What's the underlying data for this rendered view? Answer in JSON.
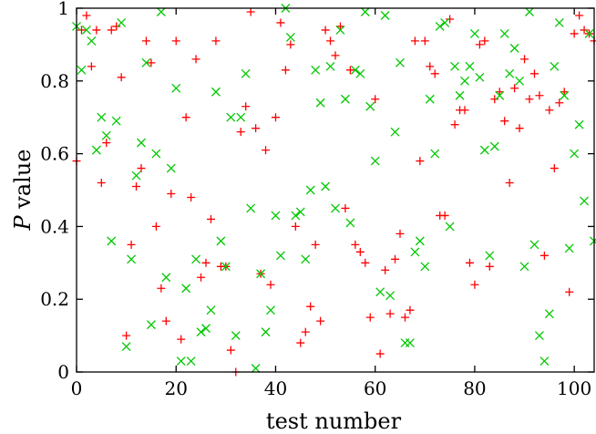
{
  "chart_data": {
    "type": "scatter",
    "title": "",
    "xlabel": "test number",
    "ylabel_symbol": "P",
    "ylabel_text": "value",
    "xlim": [
      0,
      104
    ],
    "ylim": [
      0,
      1
    ],
    "x_ticks": [
      0,
      20,
      40,
      60,
      80,
      100
    ],
    "y_ticks": [
      0,
      0.2,
      0.4,
      0.6,
      0.8,
      1
    ],
    "y_tick_labels": [
      "0",
      "0.2",
      "0.4",
      "0.6",
      "0.8",
      "1"
    ],
    "grid": false,
    "legend": "none",
    "series": [
      {
        "marker": "plus",
        "color": "#ff0000",
        "points": [
          [
            0,
            0.58
          ],
          [
            1,
            0.94
          ],
          [
            2,
            0.98
          ],
          [
            3,
            0.84
          ],
          [
            4,
            0.94
          ],
          [
            5,
            0.52
          ],
          [
            6,
            0.63
          ],
          [
            7,
            0.94
          ],
          [
            8,
            0.95
          ],
          [
            9,
            0.81
          ],
          [
            10,
            0.1
          ],
          [
            11,
            0.35
          ],
          [
            12,
            0.51
          ],
          [
            13,
            0.56
          ],
          [
            14,
            0.91
          ],
          [
            15,
            0.85
          ],
          [
            16,
            0.4
          ],
          [
            17,
            0.23
          ],
          [
            18,
            0.14
          ],
          [
            19,
            0.49
          ],
          [
            20,
            0.91
          ],
          [
            21,
            0.09
          ],
          [
            22,
            0.7
          ],
          [
            23,
            0.48
          ],
          [
            24,
            0.86
          ],
          [
            25,
            0.26
          ],
          [
            26,
            0.3
          ],
          [
            27,
            0.42
          ],
          [
            28,
            0.91
          ],
          [
            29,
            0.29
          ],
          [
            30,
            0.29
          ],
          [
            31,
            0.06
          ],
          [
            32,
            0.0
          ],
          [
            33,
            0.66
          ],
          [
            34,
            0.73
          ],
          [
            35,
            0.99
          ],
          [
            36,
            0.67
          ],
          [
            37,
            0.27
          ],
          [
            38,
            0.61
          ],
          [
            39,
            0.24
          ],
          [
            40,
            0.7
          ],
          [
            41,
            0.96
          ],
          [
            42,
            0.83
          ],
          [
            43,
            0.9
          ],
          [
            44,
            0.4
          ],
          [
            45,
            0.08
          ],
          [
            46,
            0.11
          ],
          [
            47,
            0.18
          ],
          [
            48,
            0.35
          ],
          [
            49,
            0.14
          ],
          [
            50,
            0.94
          ],
          [
            51,
            0.91
          ],
          [
            52,
            0.87
          ],
          [
            53,
            0.95
          ],
          [
            54,
            0.45
          ],
          [
            55,
            0.83
          ],
          [
            56,
            0.35
          ],
          [
            57,
            0.33
          ],
          [
            58,
            0.3
          ],
          [
            59,
            0.15
          ],
          [
            60,
            0.75
          ],
          [
            61,
            0.05
          ],
          [
            62,
            0.28
          ],
          [
            63,
            0.16
          ],
          [
            64,
            0.31
          ],
          [
            65,
            0.38
          ],
          [
            66,
            0.15
          ],
          [
            67,
            0.17
          ],
          [
            68,
            0.91
          ],
          [
            69,
            0.58
          ],
          [
            70,
            0.91
          ],
          [
            71,
            0.84
          ],
          [
            72,
            0.82
          ],
          [
            73,
            0.43
          ],
          [
            74,
            0.43
          ],
          [
            75,
            0.97
          ],
          [
            76,
            0.68
          ],
          [
            77,
            0.72
          ],
          [
            78,
            0.72
          ],
          [
            79,
            0.3
          ],
          [
            80,
            0.24
          ],
          [
            81,
            0.9
          ],
          [
            82,
            0.91
          ],
          [
            83,
            0.29
          ],
          [
            84,
            0.75
          ],
          [
            85,
            0.77
          ],
          [
            86,
            0.69
          ],
          [
            87,
            0.52
          ],
          [
            88,
            0.78
          ],
          [
            89,
            0.67
          ],
          [
            90,
            0.86
          ],
          [
            91,
            0.75
          ],
          [
            92,
            0.82
          ],
          [
            93,
            0.76
          ],
          [
            94,
            0.32
          ],
          [
            95,
            0.72
          ],
          [
            96,
            0.56
          ],
          [
            97,
            0.74
          ],
          [
            98,
            0.77
          ],
          [
            99,
            0.22
          ],
          [
            100,
            0.93
          ],
          [
            101,
            0.98
          ],
          [
            102,
            0.94
          ],
          [
            103,
            0.93
          ],
          [
            104,
            0.91
          ]
        ]
      },
      {
        "marker": "cross",
        "color": "#00c800",
        "points": [
          [
            0,
            0.95
          ],
          [
            1,
            0.83
          ],
          [
            2,
            0.94
          ],
          [
            3,
            0.91
          ],
          [
            4,
            0.61
          ],
          [
            5,
            0.7
          ],
          [
            6,
            0.65
          ],
          [
            7,
            0.36
          ],
          [
            8,
            0.69
          ],
          [
            9,
            0.96
          ],
          [
            10,
            0.07
          ],
          [
            11,
            0.31
          ],
          [
            12,
            0.54
          ],
          [
            13,
            0.63
          ],
          [
            14,
            0.85
          ],
          [
            15,
            0.13
          ],
          [
            16,
            0.6
          ],
          [
            17,
            0.99
          ],
          [
            18,
            0.26
          ],
          [
            19,
            0.56
          ],
          [
            20,
            0.78
          ],
          [
            21,
            0.03
          ],
          [
            22,
            0.23
          ],
          [
            23,
            0.03
          ],
          [
            24,
            0.31
          ],
          [
            25,
            0.11
          ],
          [
            26,
            0.12
          ],
          [
            27,
            0.17
          ],
          [
            28,
            0.77
          ],
          [
            29,
            0.36
          ],
          [
            30,
            0.29
          ],
          [
            31,
            0.7
          ],
          [
            32,
            0.1
          ],
          [
            33,
            0.7
          ],
          [
            34,
            0.82
          ],
          [
            35,
            0.45
          ],
          [
            36,
            0.01
          ],
          [
            37,
            0.27
          ],
          [
            38,
            0.11
          ],
          [
            39,
            0.17
          ],
          [
            40,
            0.43
          ],
          [
            41,
            0.32
          ],
          [
            42,
            1.0
          ],
          [
            43,
            0.92
          ],
          [
            44,
            0.43
          ],
          [
            45,
            0.44
          ],
          [
            46,
            0.31
          ],
          [
            47,
            0.5
          ],
          [
            48,
            0.83
          ],
          [
            49,
            0.74
          ],
          [
            50,
            0.51
          ],
          [
            51,
            0.84
          ],
          [
            52,
            0.45
          ],
          [
            53,
            0.94
          ],
          [
            54,
            0.75
          ],
          [
            55,
            0.41
          ],
          [
            56,
            0.83
          ],
          [
            57,
            0.82
          ],
          [
            58,
            0.99
          ],
          [
            59,
            0.73
          ],
          [
            60,
            0.58
          ],
          [
            61,
            0.22
          ],
          [
            62,
            0.98
          ],
          [
            63,
            0.21
          ],
          [
            64,
            0.66
          ],
          [
            65,
            0.85
          ],
          [
            66,
            0.08
          ],
          [
            67,
            0.08
          ],
          [
            68,
            0.33
          ],
          [
            69,
            0.36
          ],
          [
            70,
            0.29
          ],
          [
            71,
            0.75
          ],
          [
            72,
            0.6
          ],
          [
            73,
            0.95
          ],
          [
            74,
            0.96
          ],
          [
            75,
            0.4
          ],
          [
            76,
            0.84
          ],
          [
            77,
            0.76
          ],
          [
            78,
            0.8
          ],
          [
            79,
            0.84
          ],
          [
            80,
            0.93
          ],
          [
            81,
            0.81
          ],
          [
            82,
            0.61
          ],
          [
            83,
            0.32
          ],
          [
            84,
            0.62
          ],
          [
            85,
            0.76
          ],
          [
            86,
            0.93
          ],
          [
            87,
            0.82
          ],
          [
            88,
            0.89
          ],
          [
            89,
            0.8
          ],
          [
            90,
            0.29
          ],
          [
            91,
            0.99
          ],
          [
            92,
            0.35
          ],
          [
            93,
            0.1
          ],
          [
            94,
            0.03
          ],
          [
            95,
            0.16
          ],
          [
            96,
            0.84
          ],
          [
            97,
            0.96
          ],
          [
            98,
            0.76
          ],
          [
            99,
            0.34
          ],
          [
            100,
            0.6
          ],
          [
            101,
            0.68
          ],
          [
            102,
            0.47
          ],
          [
            103,
            0.93
          ],
          [
            104,
            0.36
          ]
        ]
      }
    ]
  }
}
